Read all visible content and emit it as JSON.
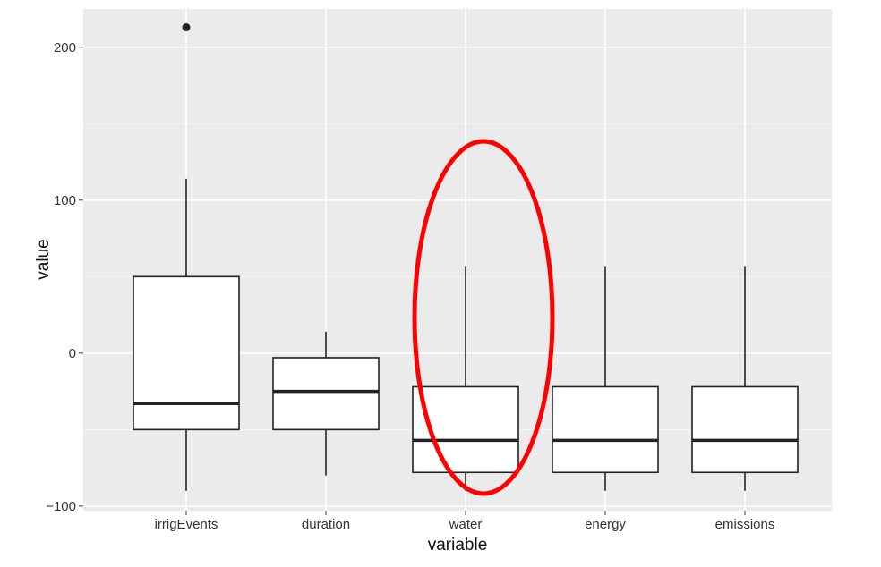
{
  "chart_data": {
    "type": "boxplot",
    "xlabel": "variable",
    "ylabel": "value",
    "ylim": [
      -103,
      225
    ],
    "y_ticks": [
      -100,
      0,
      100,
      200
    ],
    "grid": true,
    "categories": [
      "irrigEvents",
      "duration",
      "water",
      "energy",
      "emissions"
    ],
    "boxes": [
      {
        "category": "irrigEvents",
        "whisker_low": -90,
        "q1": -50,
        "median": -33,
        "q3": 50,
        "whisker_high": 114,
        "outliers": [
          213
        ]
      },
      {
        "category": "duration",
        "whisker_low": -80,
        "q1": -50,
        "median": -25,
        "q3": -3,
        "whisker_high": 14,
        "outliers": []
      },
      {
        "category": "water",
        "whisker_low": -90,
        "q1": -78,
        "median": -57,
        "q3": -22,
        "whisker_high": 57,
        "outliers": []
      },
      {
        "category": "energy",
        "whisker_low": -90,
        "q1": -78,
        "median": -57,
        "q3": -22,
        "whisker_high": 57,
        "outliers": []
      },
      {
        "category": "emissions",
        "whisker_low": -90,
        "q1": -78,
        "median": -57,
        "q3": -22,
        "whisker_high": 57,
        "outliers": []
      }
    ],
    "annotation": {
      "type": "ellipse",
      "color": "#ff0000",
      "highlights": "water"
    }
  },
  "colors": {
    "panel_background": "#ebebeb",
    "grid": "#ffffff",
    "box_fill": "#ffffff",
    "box_stroke": "#222222",
    "highlight": "#ff0000"
  }
}
